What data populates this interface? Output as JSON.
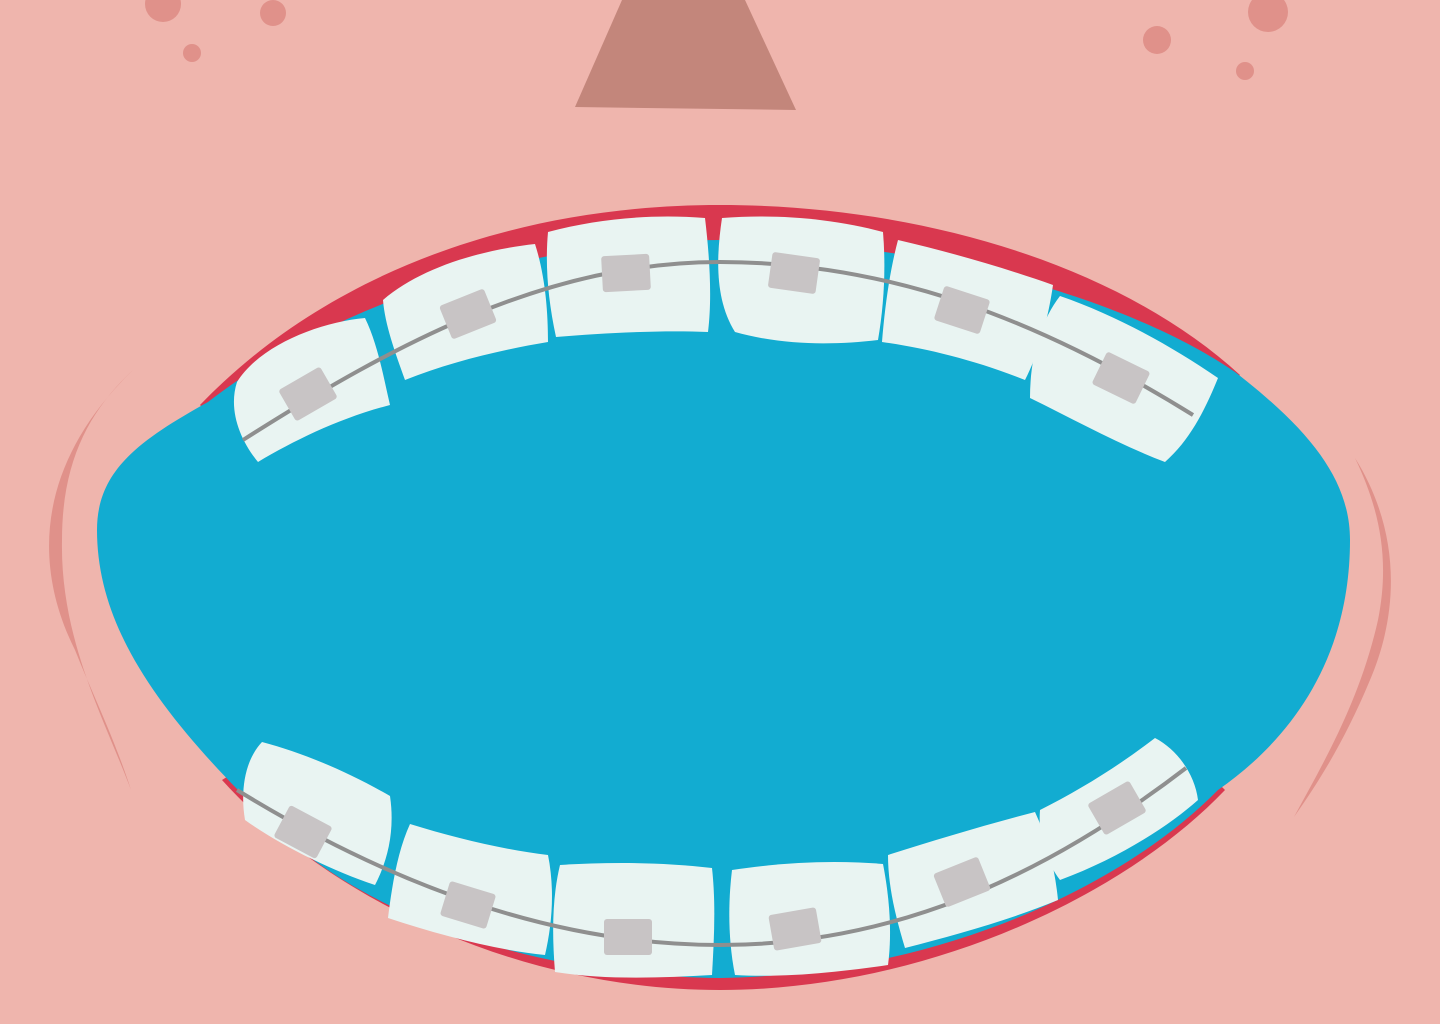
{
  "illustration": {
    "subject": "open-mouth-with-braces",
    "teeth_per_arch": 6,
    "colors": {
      "skin": "#efb5ad",
      "freckle": "#e0918a",
      "nose": "#c3867b",
      "cheek_line": "#e0918a",
      "lip_gum": "#d9384f",
      "mouth_inside": "#12acd1",
      "tooth": "#e9f4f2",
      "bracket": "#c8c4c5",
      "wire": "#8f8f8f"
    },
    "icons": {
      "nose": "nose-icon",
      "freckle": "freckle-icon",
      "tooth": "tooth-icon",
      "bracket": "bracket-icon"
    }
  }
}
